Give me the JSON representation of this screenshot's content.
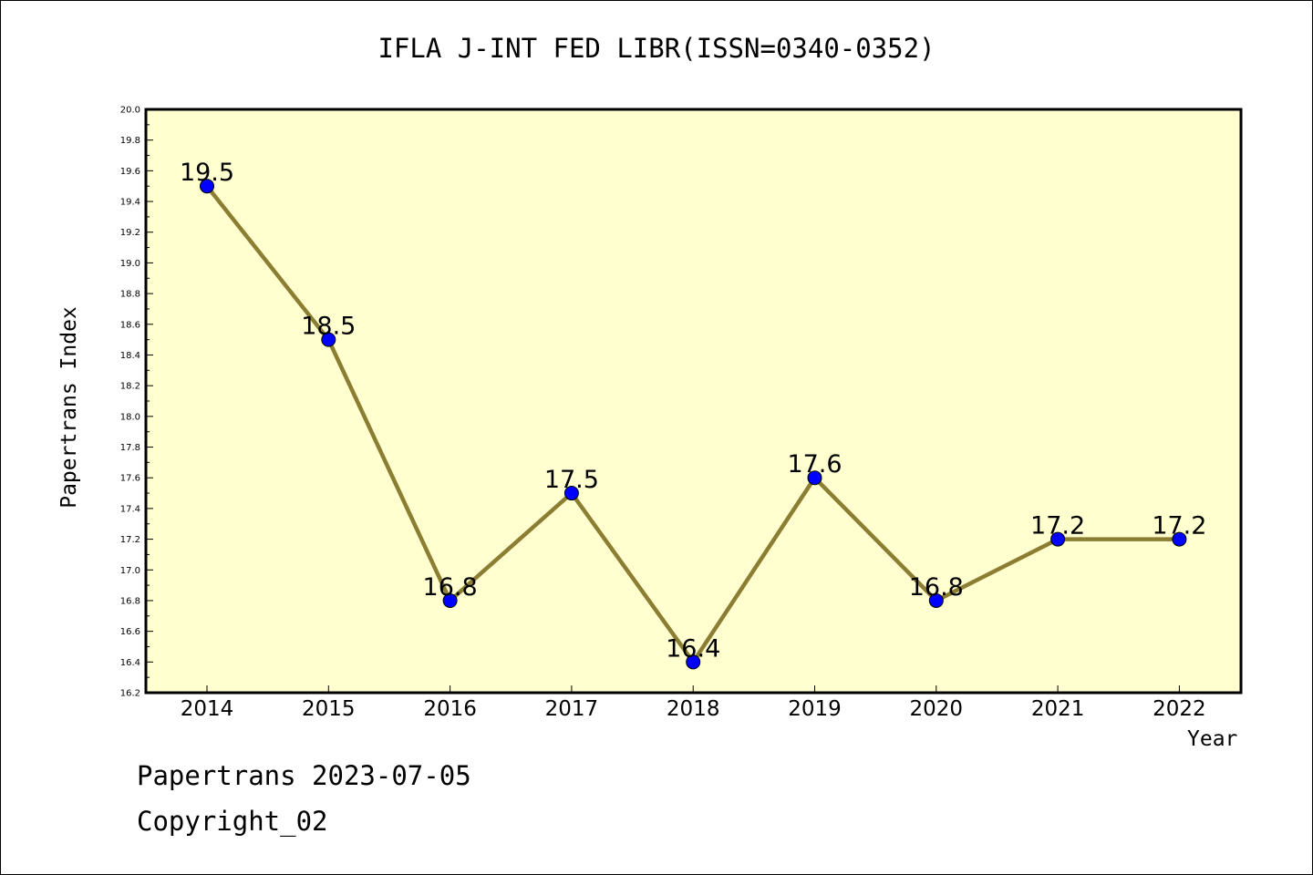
{
  "chart_data": {
    "type": "line",
    "title": "IFLA J-INT FED LIBR(ISSN=0340-0352)",
    "xlabel": "Year",
    "ylabel": "Papertrans Index",
    "categories": [
      "2014",
      "2015",
      "2016",
      "2017",
      "2018",
      "2019",
      "2020",
      "2021",
      "2022"
    ],
    "values": [
      19.5,
      18.5,
      16.8,
      17.5,
      16.4,
      17.6,
      16.8,
      17.2,
      17.2
    ],
    "data_labels": [
      "19.5",
      "18.5",
      "16.8",
      "17.5",
      "16.4",
      "17.6",
      "16.8",
      "17.2",
      "17.2"
    ],
    "ylim": [
      16.2,
      20.0
    ],
    "yticks": [
      "16.2",
      "16.4",
      "16.6",
      "16.8",
      "17.0",
      "17.2",
      "17.4",
      "17.6",
      "17.8",
      "18.0",
      "18.2",
      "18.4",
      "18.6",
      "18.8",
      "19.0",
      "19.2",
      "19.4",
      "19.6",
      "19.8",
      "20.0"
    ],
    "grid": false,
    "colors": {
      "plot_background": "#ffffd0",
      "line": "#8b7d32",
      "marker": "#0000ff"
    }
  },
  "footer": {
    "line1": "Papertrans 2023-07-05",
    "line2": "Copyright_02"
  }
}
